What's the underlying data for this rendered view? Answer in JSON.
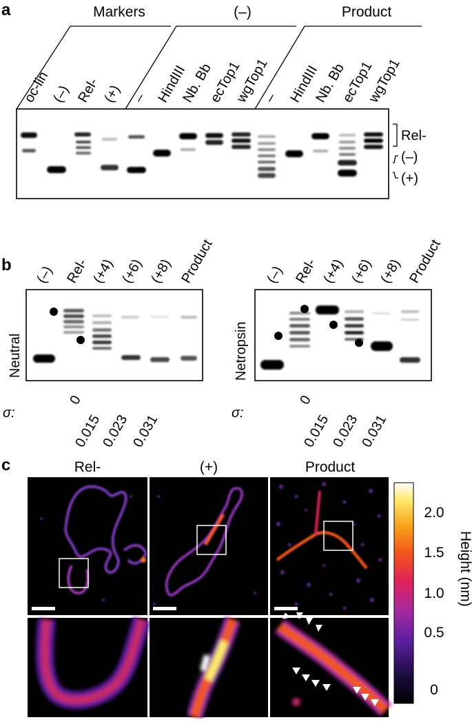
{
  "panel_a": {
    "letter": "a",
    "group_labels": [
      "Markers",
      "(–)",
      "Product"
    ],
    "lanes": [
      "oc-lin",
      "(–)",
      "Rel-",
      "(+)",
      "–",
      "HindIII",
      "Nb. Bb",
      "ecTop1",
      "wgTop1",
      "–",
      "HindIII",
      "Nb. Bb",
      "ecTop1",
      "wgTop1"
    ],
    "right_labels": [
      "Rel-",
      "(–)",
      "(+)"
    ]
  },
  "panel_b": {
    "letter": "b",
    "left": {
      "side_label": "Neutral",
      "lanes": [
        "(–)",
        "Rel-",
        "(+4)",
        "(+6)",
        "(+8)",
        "Product"
      ]
    },
    "right": {
      "side_label": "Netropsin",
      "lanes": [
        "(–)",
        "Rel-",
        "(+4)",
        "(+6)",
        "(+8)",
        "Product"
      ]
    },
    "sigma_symbol": "σ:",
    "sigma_values": [
      "0",
      "0.015",
      "0.023",
      "0.031"
    ]
  },
  "panel_c": {
    "letter": "c",
    "column_titles": [
      "Rel-",
      "(+)",
      "Product"
    ],
    "colorbar_ticks": [
      "2.0",
      "1.5",
      "1.0",
      "0.5",
      "0"
    ],
    "colorbar_label": "Height (nm)"
  }
}
